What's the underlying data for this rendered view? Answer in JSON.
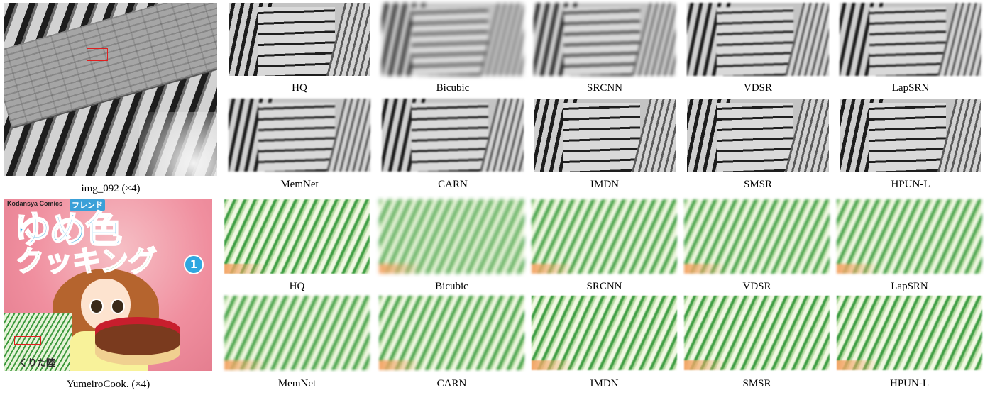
{
  "figure": {
    "examples": [
      {
        "id": "building",
        "image_caption": "img_092 (×4)",
        "method_rows": [
          [
            "HQ",
            "Bicubic",
            "SRCNN",
            "VDSR",
            "LapSRN"
          ],
          [
            "MemNet",
            "CARN",
            "IMDN",
            "SMSR",
            "HPUN-L"
          ]
        ]
      },
      {
        "id": "manga",
        "image_caption": "YumeiroCook. (×4)",
        "cover_text": {
          "publisher": "Kodansya Comics",
          "label": "フレンド",
          "title_line1": "ゆめ色",
          "title_line2": "クッキング",
          "volume": "1",
          "author": "くりた陸"
        },
        "method_rows": [
          [
            "HQ",
            "Bicubic",
            "SRCNN",
            "VDSR",
            "LapSRN"
          ],
          [
            "MemNet",
            "CARN",
            "IMDN",
            "SMSR",
            "HPUN-L"
          ]
        ]
      }
    ],
    "colors": {
      "roi_box": "#e01e1e"
    }
  }
}
